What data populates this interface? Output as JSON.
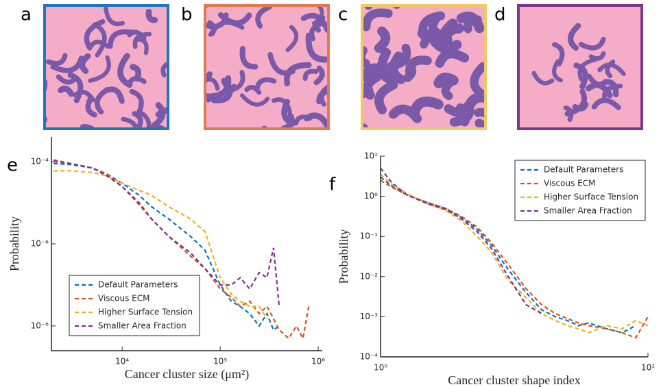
{
  "panels": [
    {
      "label": "a",
      "color": "#1f77c0"
    },
    {
      "label": "b",
      "color": "#e07a50"
    },
    {
      "label": "c",
      "color": "#f0c868"
    },
    {
      "label": "d",
      "color": "#7e3590"
    }
  ],
  "chart_data": [
    {
      "type": "line",
      "panel_label": "e",
      "xlabel": "Cancer cluster size (μm²)",
      "ylabel": "Probability",
      "log_x": true,
      "log_y": true,
      "legend": "lower left",
      "xlim": [
        1900,
        1100000
      ],
      "ylim": [
        2.5e-09,
        0.0004
      ],
      "xticks": [
        {
          "value": 10000,
          "label": "10⁴"
        },
        {
          "value": 100000,
          "label": "10⁵"
        },
        {
          "value": 1000000,
          "label": "10⁶"
        }
      ],
      "yticks": [
        {
          "value": 0.0001,
          "label": "10⁻⁴"
        },
        {
          "value": 1e-06,
          "label": "10⁻⁶"
        },
        {
          "value": 1e-08,
          "label": "10⁻⁸"
        }
      ],
      "x": [
        2000,
        3000,
        5000,
        7000,
        10000,
        15000,
        20000,
        30000,
        50000,
        70000,
        100000,
        130000,
        160000,
        200000,
        250000,
        300000,
        350000,
        400000,
        500000,
        600000,
        700000,
        800000
      ],
      "series": [
        {
          "name": "Default Parameters",
          "color": "#0072BD",
          "values": [
            9e-05,
            8.5e-05,
            7e-05,
            5e-05,
            3e-05,
            1.5e-05,
            8e-06,
            4e-06,
            1.5e-06,
            7e-07,
            1e-07,
            4e-08,
            3e-08,
            2e-08,
            1e-08,
            2e-08,
            8e-09,
            1e-08,
            null,
            null,
            null,
            null
          ]
        },
        {
          "name": "Viscous ECM",
          "color": "#D95319",
          "values": [
            0.0001,
            9e-05,
            7e-05,
            5e-05,
            2.5e-05,
            1e-05,
            4e-06,
            1.5e-06,
            5e-07,
            2.5e-07,
            8e-08,
            5e-08,
            3e-08,
            4e-08,
            2e-08,
            3e-08,
            1.5e-08,
            8e-09,
            5e-09,
            1e-08,
            5e-09,
            3e-08
          ]
        },
        {
          "name": "Higher Surface Tension",
          "color": "#EDB120",
          "values": [
            6e-05,
            6e-05,
            5.5e-05,
            4.5e-05,
            3e-05,
            2e-05,
            1.5e-05,
            8e-06,
            4e-06,
            2e-06,
            1.5e-07,
            6e-08,
            4e-08,
            3e-08,
            3e-08,
            1.5e-08,
            null,
            null,
            null,
            null,
            null,
            null
          ]
        },
        {
          "name": "Smaller Area Fraction",
          "color": "#7E2F8E",
          "values": [
            0.00011,
            9e-05,
            7e-05,
            4.5e-05,
            2.5e-05,
            9e-06,
            4e-06,
            1.5e-06,
            6e-07,
            2.5e-07,
            1e-07,
            1e-07,
            1.5e-07,
            8e-08,
            2e-07,
            1.5e-07,
            8e-07,
            3e-08,
            null,
            null,
            null,
            null
          ]
        }
      ]
    },
    {
      "type": "line",
      "panel_label": "f",
      "xlabel": "Cancer cluster shape index",
      "ylabel": "Probability",
      "log_x": true,
      "log_y": true,
      "legend": "upper right",
      "xlim": [
        1,
        10
      ],
      "ylim": [
        0.0001,
        10
      ],
      "xticks": [
        {
          "value": 1,
          "label": "10⁰"
        },
        {
          "value": 10,
          "label": "10¹"
        }
      ],
      "yticks": [
        {
          "value": 10,
          "label": "10¹"
        },
        {
          "value": 1,
          "label": "10⁰"
        },
        {
          "value": 0.1,
          "label": "10⁻¹"
        },
        {
          "value": 0.01,
          "label": "10⁻²"
        },
        {
          "value": 0.001,
          "label": "10⁻³"
        },
        {
          "value": 0.0001,
          "label": "10⁻⁴"
        }
      ],
      "x": [
        1,
        1.1,
        1.25,
        1.5,
        1.75,
        2,
        2.3,
        2.6,
        3,
        3.5,
        4,
        4.5,
        5,
        5.5,
        6,
        7,
        8,
        9,
        10
      ],
      "series": [
        {
          "name": "Default Parameters",
          "color": "#0072BD",
          "values": [
            3,
            1.8,
            1.1,
            0.7,
            0.5,
            0.3,
            0.15,
            0.06,
            0.015,
            0.004,
            0.0015,
            0.001,
            0.0008,
            0.0006,
            0.0007,
            0.0005,
            0.0004,
            0.0006,
            null
          ]
        },
        {
          "name": "Viscous ECM",
          "color": "#D95319",
          "values": [
            2.5,
            1.7,
            1.1,
            0.7,
            0.5,
            0.32,
            0.17,
            0.07,
            0.02,
            0.005,
            0.002,
            0.0012,
            0.0009,
            0.0007,
            0.0006,
            0.0005,
            0.0004,
            0.0003,
            0.001
          ]
        },
        {
          "name": "Higher Surface Tension",
          "color": "#EDB120",
          "values": [
            3.5,
            2,
            1.2,
            0.65,
            0.45,
            0.25,
            0.1,
            0.04,
            0.008,
            0.003,
            0.0012,
            0.0008,
            0.0006,
            0.0005,
            0.0004,
            0.0006,
            0.0005,
            0.0008,
            0.0006
          ]
        },
        {
          "name": "Smaller Area Fraction",
          "color": "#7E2F8E",
          "values": [
            5,
            2.2,
            1.1,
            0.65,
            0.47,
            0.28,
            0.13,
            0.05,
            0.01,
            0.002,
            0.0012,
            null,
            null,
            null,
            null,
            null,
            null,
            null,
            null
          ]
        }
      ]
    }
  ]
}
